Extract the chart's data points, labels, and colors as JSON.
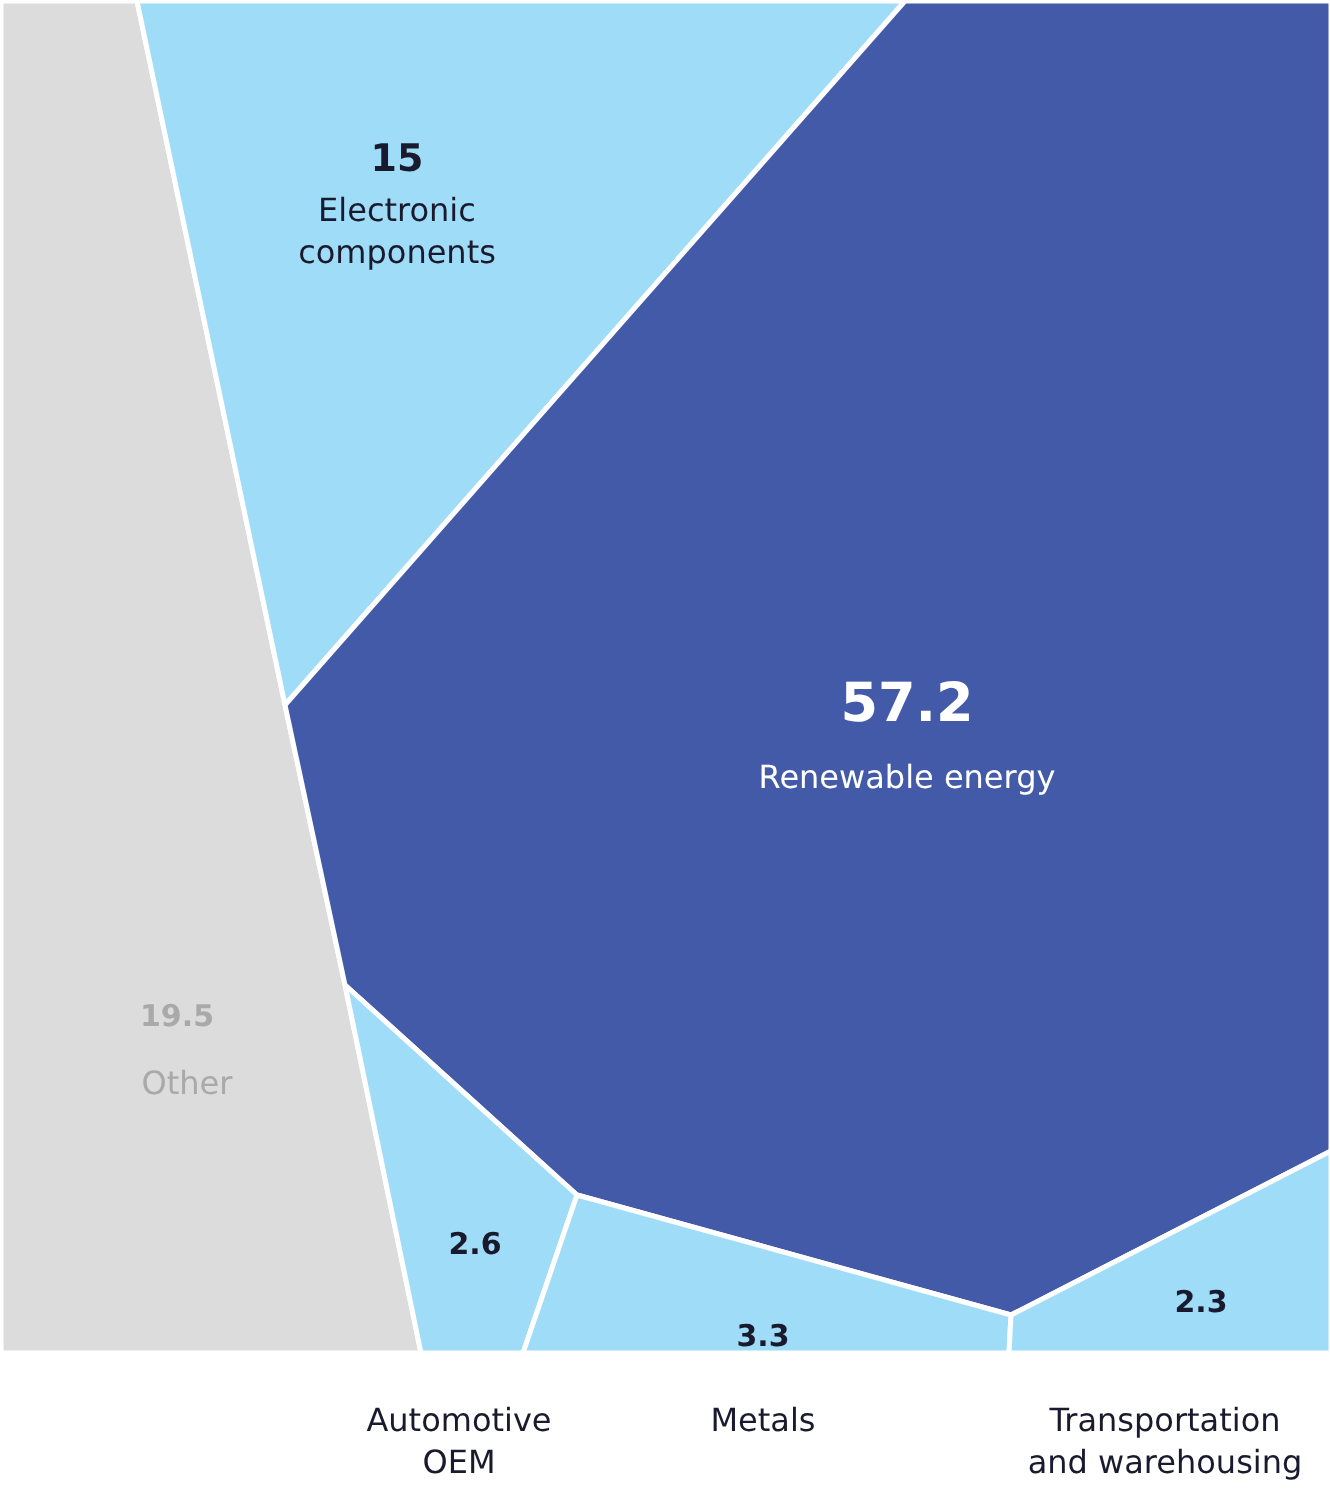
{
  "chart_data": {
    "type": "other",
    "categories": [
      "Other",
      "Electronic components",
      "Renewable energy",
      "Automotive OEM",
      "Metals",
      "Transportation and warehousing"
    ],
    "values": [
      19.5,
      15,
      57.2,
      2.6,
      3.3,
      2.3
    ],
    "colors": [
      "#dcdcdc",
      "#9fdcf7",
      "#435aa9",
      "#9fdcf7",
      "#9fdcf7",
      "#9fdcf7"
    ],
    "data_labels": true
  }
}
